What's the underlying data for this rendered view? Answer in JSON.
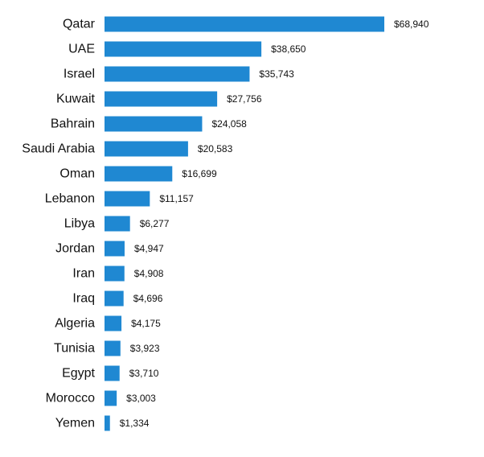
{
  "chart_data": {
    "type": "bar",
    "orientation": "horizontal",
    "title": "",
    "xlabel": "",
    "ylabel": "",
    "categories": [
      "Qatar",
      "UAE",
      "Israel",
      "Kuwait",
      "Bahrain",
      "Saudi Arabia",
      "Oman",
      "Lebanon",
      "Libya",
      "Jordan",
      "Iran",
      "Iraq",
      "Algeria",
      "Tunisia",
      "Egypt",
      "Morocco",
      "Yemen"
    ],
    "values": [
      68940,
      38650,
      35743,
      27756,
      24058,
      20583,
      16699,
      11157,
      6277,
      4947,
      4908,
      4696,
      4175,
      3923,
      3710,
      3003,
      1334
    ],
    "value_labels": [
      "$68,940",
      "$38,650",
      "$35,743",
      "$27,756",
      "$24,058",
      "$20,583",
      "$16,699",
      "$11,157",
      "$6,277",
      "$4,947",
      "$4,908",
      "$4,696",
      "$4,175",
      "$3,923",
      "$3,710",
      "$3,003",
      "$1,334"
    ],
    "xlim": [
      0,
      68940
    ],
    "grid": false,
    "legend": "none",
    "bar_color": "#1f88d2",
    "text_color": "#111111"
  }
}
